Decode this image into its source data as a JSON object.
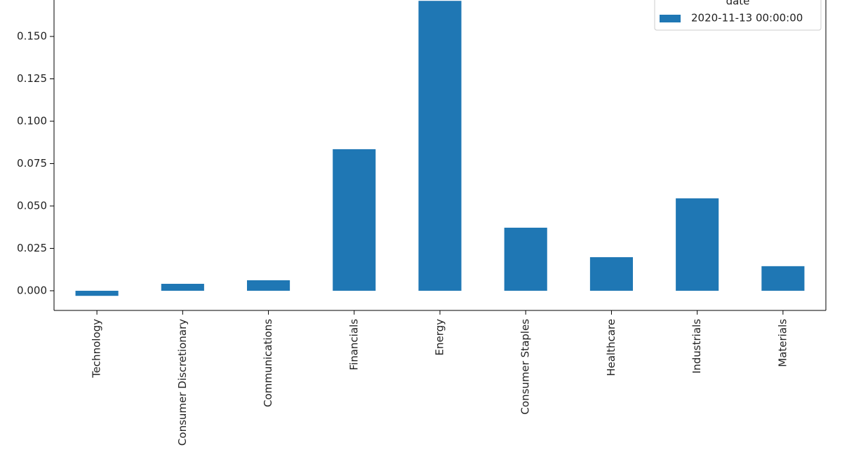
{
  "chart_data": {
    "type": "bar",
    "categories": [
      "Technology",
      "Consumer Discretionary",
      "Communications",
      "Financials",
      "Energy",
      "Consumer Staples",
      "Healthcare",
      "Industrials",
      "Materials"
    ],
    "series": [
      {
        "name": "2020-11-13 00:00:00",
        "color": "#1f77b4",
        "values": [
          -0.003,
          0.0041,
          0.0062,
          0.0835,
          0.171,
          0.0372,
          0.0198,
          0.0545,
          0.0145
        ]
      }
    ],
    "legend_title": "date",
    "legend": "upper right",
    "ylim": [
      -0.0116,
      0.1715
    ],
    "yticks": [
      {
        "value": 0,
        "label": "0.000"
      },
      {
        "value": 0.025,
        "label": "0.025"
      },
      {
        "value": 0.05,
        "label": "0.050"
      },
      {
        "value": 0.075,
        "label": "0.075"
      },
      {
        "value": 0.1,
        "label": "0.100"
      },
      {
        "value": 0.125,
        "label": "0.125"
      },
      {
        "value": 0.15,
        "label": "0.150"
      }
    ],
    "grid": false
  }
}
